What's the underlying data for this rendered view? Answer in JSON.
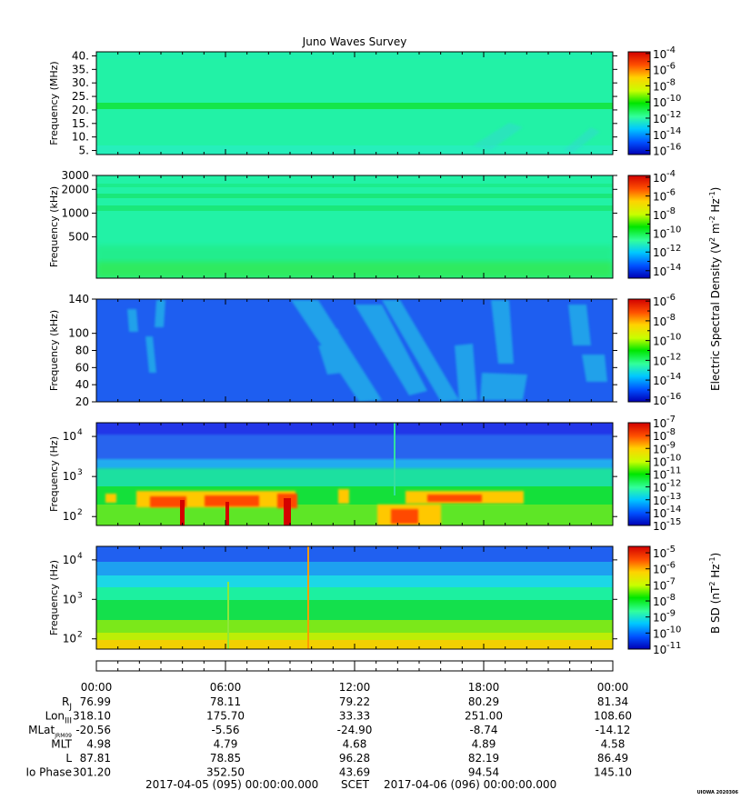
{
  "title": "Juno Waves Survey",
  "stamp": "UIOWA 2020306",
  "colors": {
    "stops": [
      "#0000b4",
      "#0050ff",
      "#00c8ff",
      "#32ff9b",
      "#00e600",
      "#c8ff00",
      "#ffd200",
      "#ff5000",
      "#d20000"
    ]
  },
  "chart_data": [
    {
      "type": "heatmap",
      "ylabel": "Frequency (MHz)",
      "y_scale": "linear",
      "ylim": [
        3.5,
        41.5
      ],
      "yticks": [
        "40.",
        "35.",
        "30.",
        "25.",
        "20.",
        "15.",
        "10.",
        "5."
      ],
      "ytick_values": [
        40,
        35,
        30,
        25,
        20,
        15,
        10,
        5
      ],
      "colorbar": {
        "range_exponent": [
          -16.5,
          -3.8
        ],
        "ticks": [
          "-4",
          "-6",
          "-8",
          "-10",
          "-12",
          "-14",
          "-16"
        ],
        "tick_values": [
          -4,
          -6,
          -8,
          -10,
          -12,
          -14,
          -16
        ]
      },
      "features": "uniform background near 1e-12 with a bright band near 21 MHz"
    },
    {
      "type": "heatmap",
      "ylabel": "Frequency (kHz)",
      "y_scale": "log",
      "ylim": [
        150,
        3000
      ],
      "yticks": [
        "3000",
        "2000",
        "1000",
        "500"
      ],
      "ytick_values": [
        3000,
        2000,
        1000,
        500
      ],
      "colorbar": {
        "range_exponent": [
          -14.8,
          -3.8
        ],
        "ticks": [
          "-4",
          "-6",
          "-8",
          "-10",
          "-12",
          "-14"
        ],
        "tick_values": [
          -4,
          -6,
          -8,
          -10,
          -12,
          -14
        ]
      },
      "features": "flat background near 1e-12 with bands near 1100 and 1700 kHz and enhancement at lowest frequencies"
    },
    {
      "type": "heatmap",
      "ylabel": "Frequency (kHz)",
      "y_scale": "linear",
      "ylim": [
        20,
        140
      ],
      "yticks": [
        "140",
        "100",
        "80",
        "60",
        "40",
        "20"
      ],
      "ytick_values": [
        140,
        100,
        80,
        60,
        40,
        20
      ],
      "colorbar": {
        "range_exponent": [
          -16.2,
          -5.8
        ],
        "ticks": [
          "-6",
          "-8",
          "-10",
          "-12",
          "-14",
          "-16"
        ],
        "tick_values": [
          -6,
          -8,
          -10,
          -12,
          -14,
          -16
        ]
      },
      "colorbar_label": "Electric Spectral Density (V",
      "features": "blue background near 1e-14 with diffuse cyan emissions 08:00-16:00 h and 22:00-23:00 h"
    },
    {
      "type": "heatmap",
      "ylabel": "Frequency (Hz)",
      "y_scale": "log",
      "ylim": [
        60,
        22000
      ],
      "ytick_exps": [
        "4",
        "3",
        "2"
      ],
      "ytick_values": [
        10000,
        1000,
        100
      ],
      "colorbar": {
        "range_exponent": [
          -15,
          -7
        ],
        "ticks": [
          "-7",
          "-8",
          "-9",
          "-10",
          "-11",
          "-12",
          "-13",
          "-14",
          "-15"
        ],
        "tick_values": [
          -7,
          -8,
          -9,
          -10,
          -11,
          -12,
          -13,
          -14,
          -15
        ]
      },
      "features": "green broadband below ~2 kHz, blue above; intense bursts (red/orange) at 100-300 Hz 03:30-09:30 h and 13:00-19:00 h"
    },
    {
      "type": "heatmap",
      "ylabel": "Frequency (Hz)",
      "y_scale": "log",
      "ylim": [
        55,
        22000
      ],
      "ytick_exps": [
        "4",
        "3",
        "2"
      ],
      "ytick_values": [
        10000,
        1000,
        100
      ],
      "colorbar": {
        "range_exponent": [
          -11,
          -4.6
        ],
        "ticks": [
          "-5",
          "-6",
          "-7",
          "-8",
          "-9",
          "-10",
          "-11"
        ],
        "tick_values": [
          -5,
          -6,
          -7,
          -8,
          -9,
          -10,
          -11
        ]
      },
      "colorbar_label": "B SD (nT",
      "features": "blue above ~3 kHz, green/yellow below ~300 Hz; narrow vertical lines near 06:00 and 09:45"
    }
  ],
  "colorbar_label_e": {
    "base": "Electric Spectral Density (V",
    "sup1": "2",
    "mid1": " m",
    "sup2": "-2",
    "mid2": " Hz",
    "sup3": "-1",
    "end": ")"
  },
  "colorbar_label_b": {
    "base": "B SD (nT",
    "sup1": "2",
    "mid1": " Hz",
    "sup2": "-1",
    "end": ")"
  },
  "x_axis": {
    "time_ticks": [
      "00:00",
      "06:00",
      "12:00",
      "18:00",
      "00:00"
    ]
  },
  "ephemeris": [
    {
      "label": "R",
      "sub": "J",
      "values": [
        "76.99",
        "78.11",
        "79.22",
        "80.29",
        "81.34"
      ]
    },
    {
      "label": "Lon",
      "sub": "III",
      "values": [
        "318.10",
        "175.70",
        "33.33",
        "251.00",
        "108.60"
      ]
    },
    {
      "label": "MLat",
      "sub": "JRM09",
      "values": [
        "-20.56",
        "-5.56",
        "-24.90",
        "-8.74",
        "-14.12"
      ]
    },
    {
      "label": "MLT",
      "sub": "",
      "values": [
        "4.98",
        "4.79",
        "4.68",
        "4.89",
        "4.58"
      ]
    },
    {
      "label": "L",
      "sub": "",
      "values": [
        "87.81",
        "78.85",
        "96.28",
        "82.19",
        "86.49"
      ]
    },
    {
      "label": "Io Phase",
      "sub": "",
      "values": [
        "301.20",
        "352.50",
        "43.69",
        "94.54",
        "145.10"
      ]
    }
  ],
  "footer": {
    "start": "2017-04-05 (095) 00:00:00.000",
    "scet": "SCET",
    "end": "2017-04-06 (096) 00:00:00.000"
  }
}
